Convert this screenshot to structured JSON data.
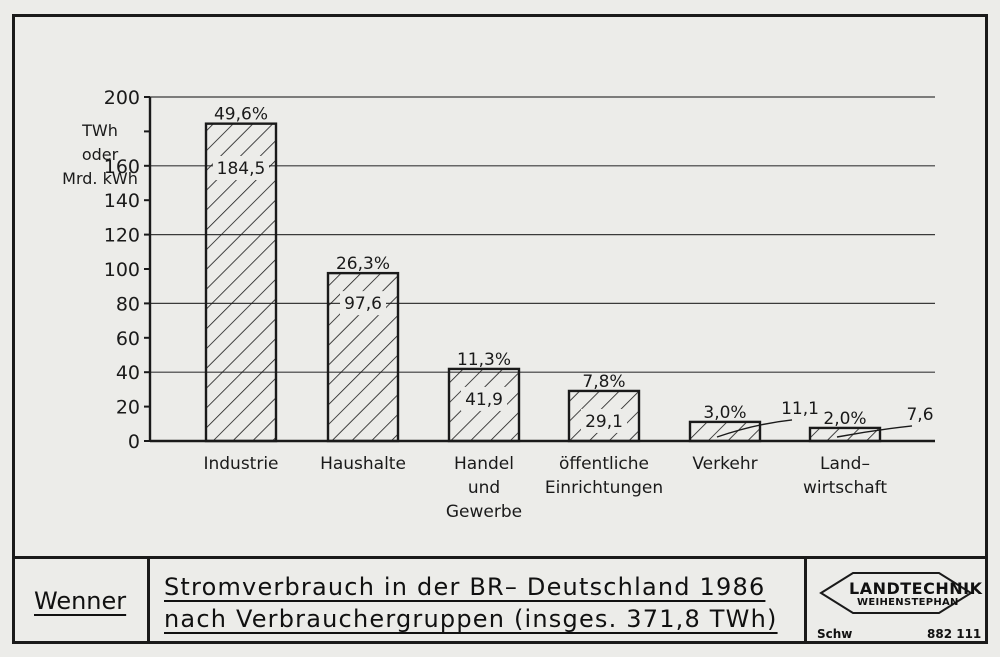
{
  "chart_data": {
    "type": "bar",
    "title": "Stromverbrauch in der BR– Deutschland 1986",
    "subtitle": "nach Verbrauchergruppen (insges. 371,8 TWh)",
    "ylabel": "TWh oder Mrd. kWh",
    "ylabel_lines": [
      "TWh",
      "oder",
      "Mrd. kWh"
    ],
    "ylim": [
      0,
      200
    ],
    "yticks": [
      0,
      20,
      40,
      60,
      80,
      100,
      120,
      140,
      160,
      180,
      200
    ],
    "ytick_labels": [
      "0",
      "20",
      "40",
      "60",
      "80",
      "100",
      "120",
      "140",
      "160",
      "",
      "200"
    ],
    "grid": true,
    "categories": [
      [
        "Industrie"
      ],
      [
        "Haushalte"
      ],
      [
        "Handel",
        "und",
        "Gewerbe"
      ],
      [
        "öffentliche",
        "Einrichtungen"
      ],
      [
        "Verkehr"
      ],
      [
        "Land–",
        "wirtschaft"
      ]
    ],
    "values": [
      184.5,
      97.6,
      41.9,
      29.1,
      11.1,
      7.6
    ],
    "value_labels": [
      "184,5",
      "97,6",
      "41,9",
      "29,1",
      "11,1",
      "7,6"
    ],
    "percent_labels": [
      "49,6%",
      "26,3%",
      "11,3%",
      "7,8%",
      "3,0%",
      "2,0%"
    ],
    "bar_fill": "hatched"
  },
  "titleblock": {
    "author": "Wenner",
    "title_line_1": "Stromverbrauch in der BR– Deutschland 1986",
    "title_line_2": "nach Verbrauchergruppen (insges. 371,8 TWh)",
    "logo_line_1": "LANDTECHNIK",
    "logo_line_2": "WEIHENSTEPHAN",
    "logo_left": "Schw",
    "logo_right": "882 111"
  },
  "colors": {
    "ink": "#1a1a1a",
    "paper": "#ecece9"
  }
}
